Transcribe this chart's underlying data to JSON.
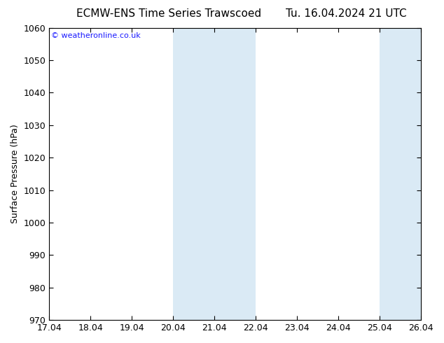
{
  "title_left": "ECMW-ENS Time Series Trawscoed",
  "title_right": "Tu. 16.04.2024 21 UTC",
  "ylabel": "Surface Pressure (hPa)",
  "ylim": [
    970,
    1060
  ],
  "yticks": [
    970,
    980,
    990,
    1000,
    1010,
    1020,
    1030,
    1040,
    1050,
    1060
  ],
  "xlim": [
    0,
    9
  ],
  "xtick_labels": [
    "17.04",
    "18.04",
    "19.04",
    "20.04",
    "21.04",
    "22.04",
    "23.04",
    "24.04",
    "25.04",
    "26.04"
  ],
  "xtick_positions": [
    0,
    1,
    2,
    3,
    4,
    5,
    6,
    7,
    8,
    9
  ],
  "shaded_bands": [
    {
      "xmin": 3,
      "xmax": 5,
      "color": "#daeaf5"
    },
    {
      "xmin": 8,
      "xmax": 9,
      "color": "#daeaf5"
    }
  ],
  "watermark": "© weatheronline.co.uk",
  "watermark_color": "#1a1aff",
  "background_color": "#ffffff",
  "plot_bg_color": "#ffffff",
  "title_fontsize": 11,
  "tick_fontsize": 9,
  "ylabel_fontsize": 9
}
